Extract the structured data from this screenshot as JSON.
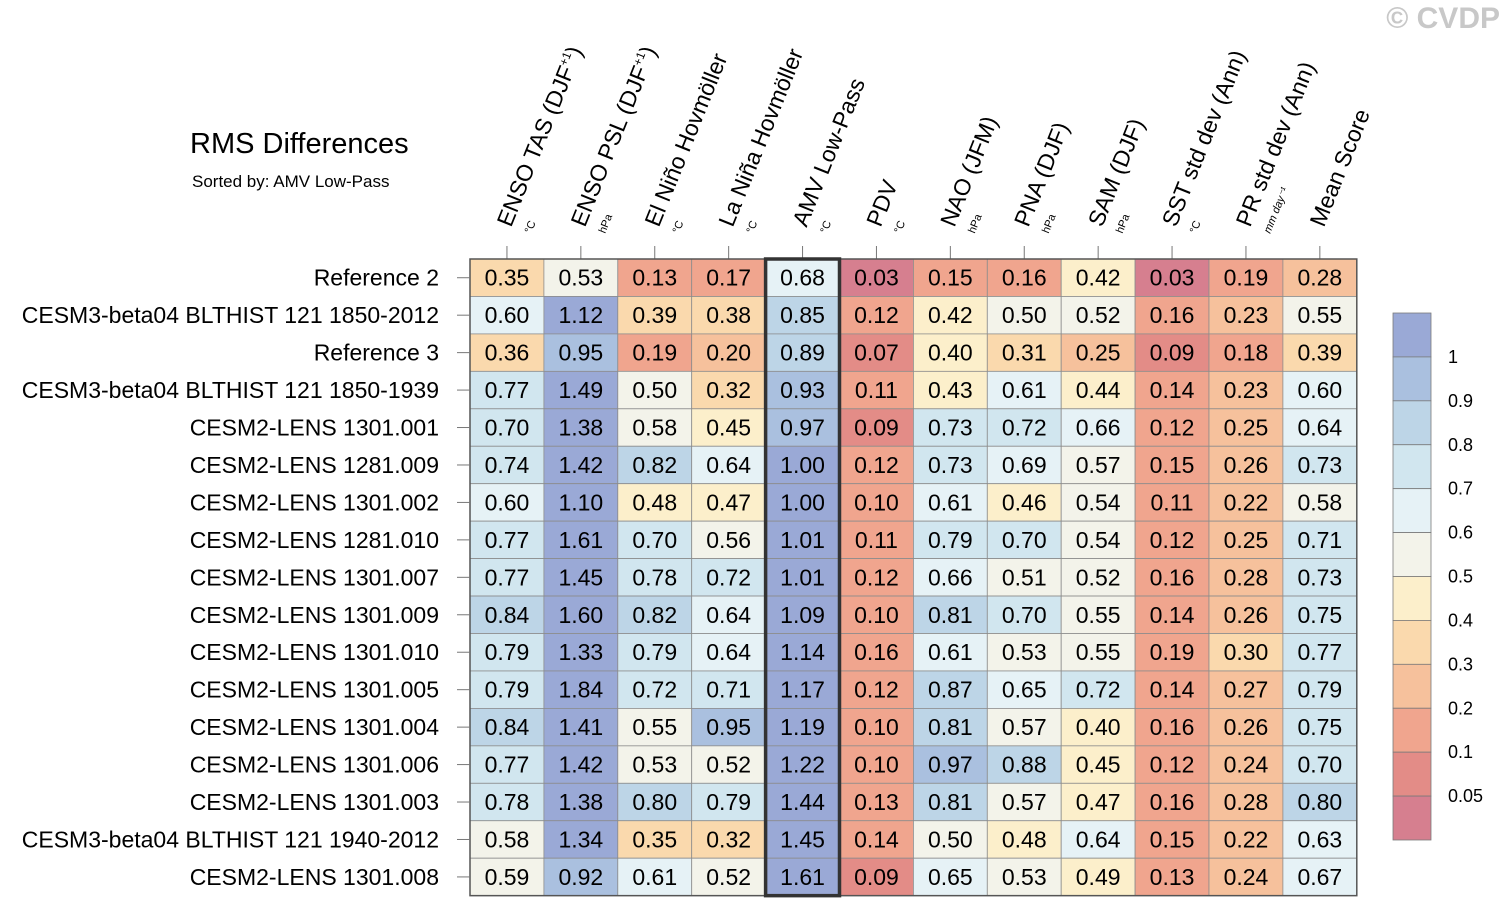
{
  "watermark": "© CVDP",
  "title": "RMS Differences",
  "subtitle": "Sorted by: AMV Low-Pass",
  "chart_data": {
    "type": "heatmap",
    "highlight_column": "AMV Low-Pass",
    "columns": [
      {
        "label": "ENSO TAS (DJF",
        "sup": "+1",
        "close": ")",
        "unit": "°C"
      },
      {
        "label": "ENSO PSL (DJF",
        "sup": "+1",
        "close": ")",
        "unit": "hPa"
      },
      {
        "label": "El Niño Hovmöller",
        "sup": "",
        "close": "",
        "unit": "°C"
      },
      {
        "label": "La Niña Hovmöller",
        "sup": "",
        "close": "",
        "unit": "°C"
      },
      {
        "label": "AMV Low-Pass",
        "sup": "",
        "close": "",
        "unit": "°C"
      },
      {
        "label": "PDV",
        "sup": "",
        "close": "",
        "unit": "°C"
      },
      {
        "label": "NAO (JFM)",
        "sup": "",
        "close": "",
        "unit": "hPa"
      },
      {
        "label": "PNA (DJF)",
        "sup": "",
        "close": "",
        "unit": "hPa"
      },
      {
        "label": "SAM (DJF)",
        "sup": "",
        "close": "",
        "unit": "hPa"
      },
      {
        "label": "SST std dev (Ann)",
        "sup": "",
        "close": "",
        "unit": "°C"
      },
      {
        "label": "PR std dev (Ann)",
        "sup": "",
        "close": "",
        "unit": "mm day⁻¹"
      },
      {
        "label": "Mean Score",
        "sup": "",
        "close": "",
        "unit": ""
      }
    ],
    "rows": [
      {
        "name": "Reference 2",
        "values": [
          "0.35",
          "0.53",
          "0.13",
          "0.17",
          "0.68",
          "0.03",
          "0.15",
          "0.16",
          "0.42",
          "0.03",
          "0.19",
          "0.28"
        ]
      },
      {
        "name": "CESM3-beta04 BLTHIST 121 1850-2012",
        "values": [
          "0.60",
          "1.12",
          "0.39",
          "0.38",
          "0.85",
          "0.12",
          "0.42",
          "0.50",
          "0.52",
          "0.16",
          "0.23",
          "0.55"
        ]
      },
      {
        "name": "Reference 3",
        "values": [
          "0.36",
          "0.95",
          "0.19",
          "0.20",
          "0.89",
          "0.07",
          "0.40",
          "0.31",
          "0.25",
          "0.09",
          "0.18",
          "0.39"
        ]
      },
      {
        "name": "CESM3-beta04 BLTHIST 121 1850-1939",
        "values": [
          "0.77",
          "1.49",
          "0.50",
          "0.32",
          "0.93",
          "0.11",
          "0.43",
          "0.61",
          "0.44",
          "0.14",
          "0.23",
          "0.60"
        ]
      },
      {
        "name": "CESM2-LENS 1301.001",
        "values": [
          "0.70",
          "1.38",
          "0.58",
          "0.45",
          "0.97",
          "0.09",
          "0.73",
          "0.72",
          "0.66",
          "0.12",
          "0.25",
          "0.64"
        ]
      },
      {
        "name": "CESM2-LENS 1281.009",
        "values": [
          "0.74",
          "1.42",
          "0.82",
          "0.64",
          "1.00",
          "0.12",
          "0.73",
          "0.69",
          "0.57",
          "0.15",
          "0.26",
          "0.73"
        ]
      },
      {
        "name": "CESM2-LENS 1301.002",
        "values": [
          "0.60",
          "1.10",
          "0.48",
          "0.47",
          "1.00",
          "0.10",
          "0.61",
          "0.46",
          "0.54",
          "0.11",
          "0.22",
          "0.58"
        ]
      },
      {
        "name": "CESM2-LENS 1281.010",
        "values": [
          "0.77",
          "1.61",
          "0.70",
          "0.56",
          "1.01",
          "0.11",
          "0.79",
          "0.70",
          "0.54",
          "0.12",
          "0.25",
          "0.71"
        ]
      },
      {
        "name": "CESM2-LENS 1301.007",
        "values": [
          "0.77",
          "1.45",
          "0.78",
          "0.72",
          "1.01",
          "0.12",
          "0.66",
          "0.51",
          "0.52",
          "0.16",
          "0.28",
          "0.73"
        ]
      },
      {
        "name": "CESM2-LENS 1301.009",
        "values": [
          "0.84",
          "1.60",
          "0.82",
          "0.64",
          "1.09",
          "0.10",
          "0.81",
          "0.70",
          "0.55",
          "0.14",
          "0.26",
          "0.75"
        ]
      },
      {
        "name": "CESM2-LENS 1301.010",
        "values": [
          "0.79",
          "1.33",
          "0.79",
          "0.64",
          "1.14",
          "0.16",
          "0.61",
          "0.53",
          "0.55",
          "0.19",
          "0.30",
          "0.77"
        ]
      },
      {
        "name": "CESM2-LENS 1301.005",
        "values": [
          "0.79",
          "1.84",
          "0.72",
          "0.71",
          "1.17",
          "0.12",
          "0.87",
          "0.65",
          "0.72",
          "0.14",
          "0.27",
          "0.79"
        ]
      },
      {
        "name": "CESM2-LENS 1301.004",
        "values": [
          "0.84",
          "1.41",
          "0.55",
          "0.95",
          "1.19",
          "0.10",
          "0.81",
          "0.57",
          "0.40",
          "0.16",
          "0.26",
          "0.75"
        ]
      },
      {
        "name": "CESM2-LENS 1301.006",
        "values": [
          "0.77",
          "1.42",
          "0.53",
          "0.52",
          "1.22",
          "0.10",
          "0.97",
          "0.88",
          "0.45",
          "0.12",
          "0.24",
          "0.70"
        ]
      },
      {
        "name": "CESM2-LENS 1301.003",
        "values": [
          "0.78",
          "1.38",
          "0.80",
          "0.79",
          "1.44",
          "0.13",
          "0.81",
          "0.57",
          "0.47",
          "0.16",
          "0.28",
          "0.80"
        ]
      },
      {
        "name": "CESM3-beta04 BLTHIST 121 1940-2012",
        "values": [
          "0.58",
          "1.34",
          "0.35",
          "0.32",
          "1.45",
          "0.14",
          "0.50",
          "0.48",
          "0.64",
          "0.15",
          "0.22",
          "0.63"
        ]
      },
      {
        "name": "CESM2-LENS 1301.008",
        "values": [
          "0.59",
          "0.92",
          "0.61",
          "0.52",
          "1.61",
          "0.09",
          "0.65",
          "0.53",
          "0.49",
          "0.13",
          "0.24",
          "0.67"
        ]
      }
    ],
    "colorbar": {
      "labels": [
        "1",
        "0.9",
        "0.8",
        "0.7",
        "0.6",
        "0.5",
        "0.4",
        "0.3",
        "0.2",
        "0.1",
        "0.05"
      ],
      "colors": [
        "#9aa9d6",
        "#aac0df",
        "#bdd5e7",
        "#d1e6ef",
        "#e6f2f6",
        "#f3f3ea",
        "#fcefcb",
        "#fad9ad",
        "#f6c19c",
        "#f0a58e",
        "#e38c87",
        "#d67f8f"
      ],
      "thresholds": [
        1.0,
        0.9,
        0.8,
        0.7,
        0.6,
        0.5,
        0.4,
        0.3,
        0.2,
        0.1,
        0.05
      ]
    }
  }
}
